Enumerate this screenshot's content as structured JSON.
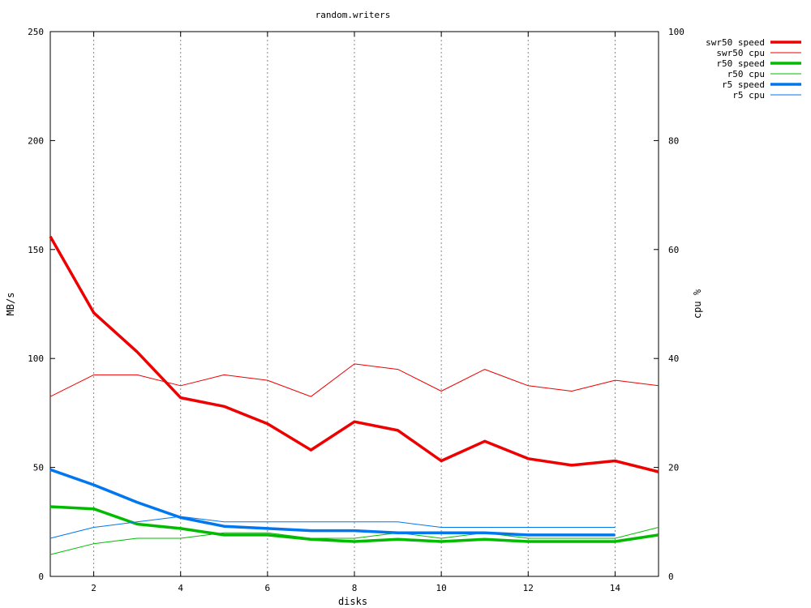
{
  "chart_data": {
    "type": "line",
    "title": "random.writers",
    "xlabel": "disks",
    "ylabel": "MB/s",
    "y2label": "cpu %",
    "xlim": [
      1,
      15
    ],
    "ylim": [
      0,
      250
    ],
    "y2lim": [
      0,
      100
    ],
    "x_ticks": [
      "2",
      "4",
      "6",
      "8",
      "10",
      "12",
      "14"
    ],
    "y_ticks": [
      "0",
      "50",
      "100",
      "150",
      "200",
      "250"
    ],
    "y2_ticks": [
      "0",
      "20",
      "40",
      "60",
      "80",
      "100"
    ],
    "grid": "vertical dotted at x ticks",
    "legend_position": "top-right outside",
    "series": [
      {
        "name": "swr50 speed",
        "axis": "y1",
        "color": "#ee0000",
        "width": "thick",
        "x": [
          1,
          2,
          3,
          4,
          5,
          6,
          7,
          8,
          9,
          10,
          11,
          12,
          13,
          14,
          15
        ],
        "values": [
          156,
          121,
          103,
          82,
          78,
          70,
          58,
          71,
          67,
          53,
          62,
          54,
          51,
          53,
          48
        ]
      },
      {
        "name": "swr50 cpu",
        "axis": "y2",
        "color": "#ee0000",
        "width": "thin",
        "x": [
          1,
          2,
          3,
          4,
          5,
          6,
          7,
          8,
          9,
          10,
          11,
          12,
          13,
          14,
          15
        ],
        "values": [
          33,
          37,
          37,
          35,
          37,
          36,
          33,
          39,
          38,
          34,
          38,
          35,
          34,
          36,
          35
        ]
      },
      {
        "name": "r50 speed",
        "axis": "y1",
        "color": "#00bb00",
        "width": "thick",
        "x": [
          1,
          2,
          3,
          4,
          5,
          6,
          7,
          8,
          9,
          10,
          11,
          12,
          13,
          14,
          15
        ],
        "values": [
          32,
          31,
          24,
          22,
          19,
          19,
          17,
          16,
          17,
          16,
          17,
          16,
          16,
          16,
          19
        ]
      },
      {
        "name": "r50 cpu",
        "axis": "y2",
        "color": "#00bb00",
        "width": "thin",
        "x": [
          1,
          2,
          3,
          4,
          5,
          6,
          7,
          8,
          9,
          10,
          11,
          12,
          13,
          14,
          15
        ],
        "values": [
          4,
          6,
          7,
          7,
          8,
          8,
          7,
          7,
          8,
          7,
          8,
          7,
          7,
          7,
          9
        ]
      },
      {
        "name": "r5 speed",
        "axis": "y1",
        "color": "#0077ee",
        "width": "thick",
        "x": [
          1,
          2,
          3,
          4,
          5,
          6,
          7,
          8,
          9,
          10,
          11,
          12,
          13,
          14
        ],
        "values": [
          49,
          42,
          34,
          27,
          23,
          22,
          21,
          21,
          20,
          20,
          20,
          19,
          19,
          19
        ]
      },
      {
        "name": "r5 cpu",
        "axis": "y2",
        "color": "#0077ee",
        "width": "thin",
        "x": [
          1,
          2,
          3,
          4,
          5,
          6,
          7,
          8,
          9,
          10,
          11,
          12,
          13,
          14
        ],
        "values": [
          7,
          9,
          10,
          11,
          10,
          10,
          10,
          10,
          10,
          9,
          9,
          9,
          9,
          9
        ]
      }
    ]
  }
}
